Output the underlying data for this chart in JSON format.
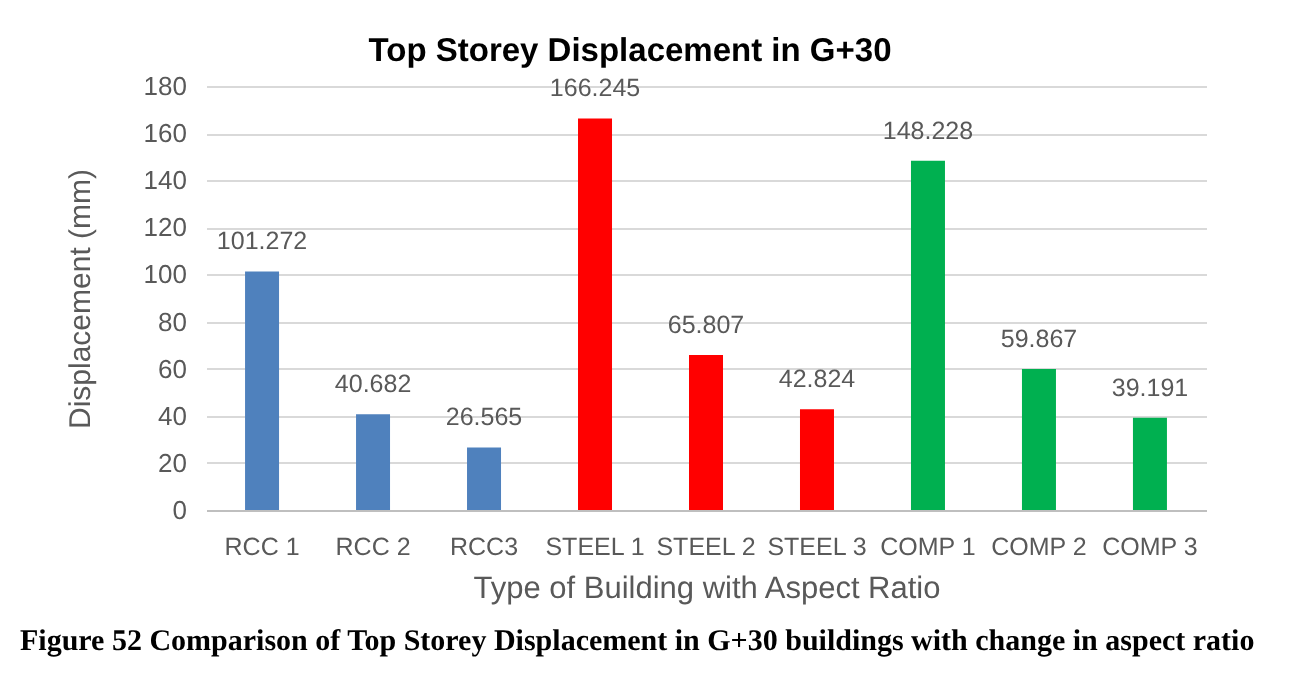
{
  "chart_data": {
    "type": "bar",
    "title": "Top Storey Displacement in G+30",
    "xlabel": "Type of Building  with Aspect Ratio",
    "ylabel": "Displacement (mm)",
    "categories": [
      "RCC 1",
      "RCC 2",
      "RCC3",
      "STEEL 1",
      "STEEL 2",
      "STEEL 3",
      "COMP 1",
      "COMP 2",
      "COMP 3"
    ],
    "values": [
      101.272,
      40.682,
      26.565,
      166.245,
      65.807,
      42.824,
      148.228,
      59.867,
      39.191
    ],
    "colors": [
      "#4f81bd",
      "#4f81bd",
      "#4f81bd",
      "#ff0000",
      "#ff0000",
      "#ff0000",
      "#00b050",
      "#00b050",
      "#00b050"
    ],
    "ylim": [
      0,
      180
    ],
    "yticks": [
      0,
      20,
      40,
      60,
      80,
      100,
      120,
      140,
      160,
      180
    ],
    "grid": "y",
    "data_labels": true,
    "annotations": [
      "Figure 52 Comparison of Top Storey Displacement in G+30 buildings with change in aspect ratio"
    ]
  }
}
